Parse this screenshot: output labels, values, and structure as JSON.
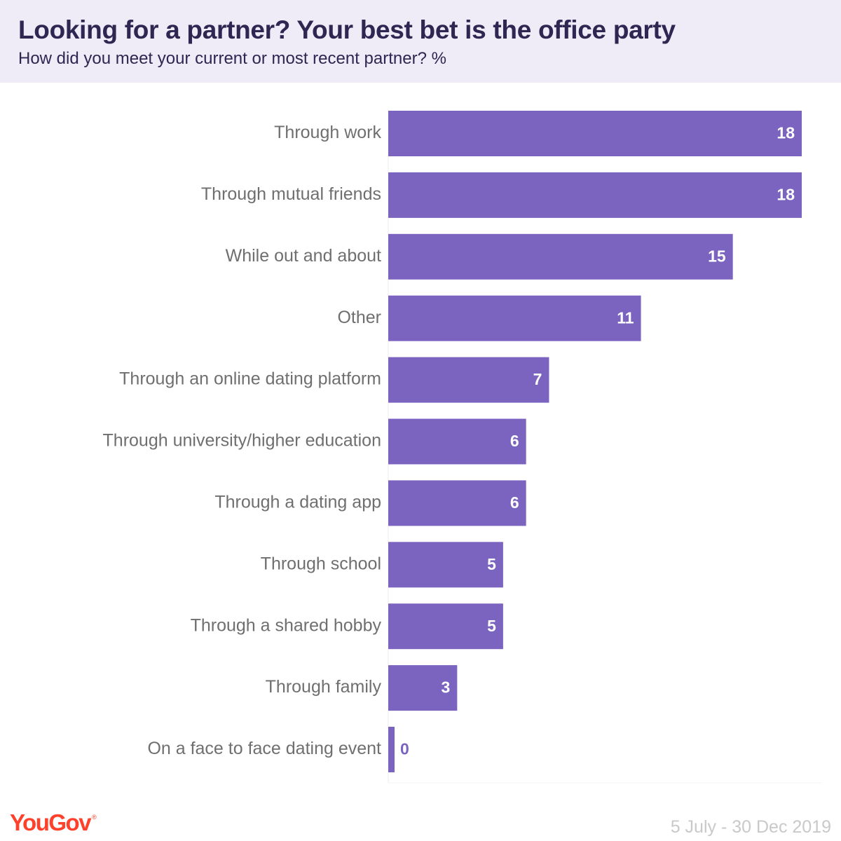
{
  "header": {
    "title": "Looking for a partner? Your best bet is the office party",
    "subtitle": "How did you meet your current or most recent partner? %"
  },
  "footer": {
    "logo": "YouGov",
    "date_range": "5 July - 30 Dec 2019"
  },
  "colors": {
    "bar": "#7b63c0",
    "value_inside": "#ffffff",
    "value_outside": "#7b63c0",
    "header_bg": "#efebf7",
    "logo": "#ff412c"
  },
  "chart_data": {
    "type": "bar",
    "orientation": "horizontal",
    "categories": [
      "Through work",
      "Through mutual friends",
      "While out and about",
      "Other",
      "Through an online dating platform",
      "Through university/higher education",
      "Through a dating app",
      "Through school",
      "Through a shared hobby",
      "Through family",
      "On a face to face dating event"
    ],
    "values": [
      18,
      18,
      15,
      11,
      7,
      6,
      6,
      5,
      5,
      3,
      0
    ],
    "value_labels": [
      "18",
      "18",
      "15",
      "11",
      "7",
      "6",
      "6",
      "5",
      "5",
      "3",
      "0"
    ],
    "xlim": [
      0,
      18
    ],
    "grid": false,
    "legend": "none"
  }
}
